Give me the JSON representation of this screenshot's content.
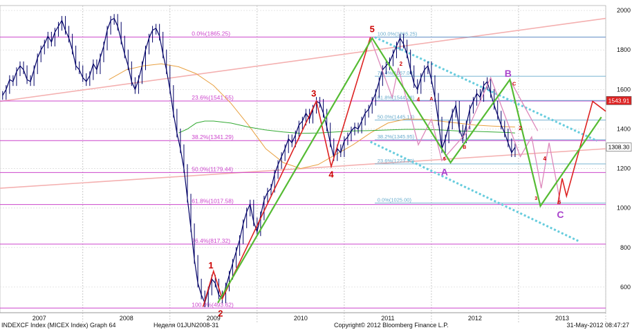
{
  "footer": {
    "ticker": "INDEXCF Index (MICEX Index) Graph 64",
    "week": "Неделя 01JUN2008-31",
    "copyright": "Copyright© 2012 Bloomberg Finance L.P.",
    "timestamp": "31-May-2012 08:47:27"
  },
  "chart_data": {
    "type": "line",
    "title": "",
    "xlabel": "",
    "ylabel": "",
    "ylim": [
      470,
      2025
    ],
    "xlim": [
      2006.55,
      2013.5
    ],
    "y_ticks": [
      600,
      800,
      1000,
      1200,
      1400,
      1600,
      1800,
      2000
    ],
    "x_ticks": [
      {
        "label": "2007",
        "at": 2007.0
      },
      {
        "label": "2008",
        "at": 2008.0
      },
      {
        "label": "2009",
        "at": 2009.0
      },
      {
        "label": "2010",
        "at": 2010.0
      },
      {
        "label": "2011",
        "at": 2011.0
      },
      {
        "label": "2012",
        "at": 2012.0
      },
      {
        "label": "2013",
        "at": 2013.0
      }
    ],
    "year_boundaries": [
      2007.5,
      2008.5,
      2009.5,
      2010.5,
      2011.5,
      2012.5,
      2013.5
    ],
    "grid": true,
    "colors": {
      "price": "#000066",
      "ma_short": "#33aa33",
      "ma_long": "#e8a040",
      "fib_main": "#cc44cc",
      "fib_sub": "#66aacc",
      "elliott": "#55bb33",
      "impulse": "#dd2222",
      "channel": "#66ccdd",
      "trend": "#f4b0b0",
      "projection": "#dd88bb",
      "label_red": "#cc0000",
      "label_purple": "#aa44cc"
    },
    "price_series": {
      "name": "MICEX Index",
      "points": [
        [
          2006.58,
          1570
        ],
        [
          2006.62,
          1600
        ],
        [
          2006.66,
          1650
        ],
        [
          2006.7,
          1640
        ],
        [
          2006.74,
          1690
        ],
        [
          2006.78,
          1720
        ],
        [
          2006.82,
          1700
        ],
        [
          2006.86,
          1650
        ],
        [
          2006.9,
          1640
        ],
        [
          2006.94,
          1700
        ],
        [
          2006.98,
          1760
        ],
        [
          2007.02,
          1800
        ],
        [
          2007.06,
          1830
        ],
        [
          2007.1,
          1870
        ],
        [
          2007.14,
          1840
        ],
        [
          2007.18,
          1890
        ],
        [
          2007.22,
          1920
        ],
        [
          2007.26,
          1950
        ],
        [
          2007.3,
          1900
        ],
        [
          2007.34,
          1860
        ],
        [
          2007.38,
          1800
        ],
        [
          2007.42,
          1720
        ],
        [
          2007.46,
          1700
        ],
        [
          2007.5,
          1660
        ],
        [
          2007.54,
          1640
        ],
        [
          2007.58,
          1670
        ],
        [
          2007.62,
          1730
        ],
        [
          2007.66,
          1700
        ],
        [
          2007.7,
          1760
        ],
        [
          2007.74,
          1820
        ],
        [
          2007.78,
          1900
        ],
        [
          2007.82,
          1950
        ],
        [
          2007.86,
          1960
        ],
        [
          2007.9,
          1920
        ],
        [
          2007.94,
          1850
        ],
        [
          2007.98,
          1780
        ],
        [
          2008.02,
          1720
        ],
        [
          2008.06,
          1640
        ],
        [
          2008.1,
          1600
        ],
        [
          2008.14,
          1650
        ],
        [
          2008.18,
          1720
        ],
        [
          2008.22,
          1800
        ],
        [
          2008.26,
          1860
        ],
        [
          2008.3,
          1900
        ],
        [
          2008.34,
          1910
        ],
        [
          2008.38,
          1870
        ],
        [
          2008.42,
          1780
        ],
        [
          2008.46,
          1700
        ],
        [
          2008.5,
          1600
        ],
        [
          2008.54,
          1480
        ],
        [
          2008.58,
          1380
        ],
        [
          2008.62,
          1300
        ],
        [
          2008.66,
          1200
        ],
        [
          2008.7,
          1050
        ],
        [
          2008.74,
          900
        ],
        [
          2008.78,
          740
        ],
        [
          2008.82,
          620
        ],
        [
          2008.86,
          560
        ],
        [
          2008.9,
          520
        ],
        [
          2008.94,
          580
        ],
        [
          2008.98,
          640
        ],
        [
          2009.02,
          620
        ],
        [
          2009.06,
          560
        ],
        [
          2009.1,
          540
        ],
        [
          2009.14,
          600
        ],
        [
          2009.18,
          660
        ],
        [
          2009.22,
          720
        ],
        [
          2009.26,
          780
        ],
        [
          2009.3,
          840
        ],
        [
          2009.34,
          920
        ],
        [
          2009.38,
          980
        ],
        [
          2009.42,
          1020
        ],
        [
          2009.46,
          930
        ],
        [
          2009.5,
          880
        ],
        [
          2009.54,
          960
        ],
        [
          2009.58,
          1040
        ],
        [
          2009.62,
          1080
        ],
        [
          2009.66,
          1100
        ],
        [
          2009.7,
          1170
        ],
        [
          2009.74,
          1220
        ],
        [
          2009.78,
          1260
        ],
        [
          2009.82,
          1300
        ],
        [
          2009.86,
          1350
        ],
        [
          2009.9,
          1330
        ],
        [
          2009.94,
          1370
        ],
        [
          2009.98,
          1420
        ],
        [
          2010.02,
          1440
        ],
        [
          2010.06,
          1480
        ],
        [
          2010.1,
          1450
        ],
        [
          2010.14,
          1500
        ],
        [
          2010.18,
          1540
        ],
        [
          2010.22,
          1530
        ],
        [
          2010.26,
          1480
        ],
        [
          2010.3,
          1410
        ],
        [
          2010.34,
          1330
        ],
        [
          2010.38,
          1260
        ],
        [
          2010.42,
          1300
        ],
        [
          2010.46,
          1280
        ],
        [
          2010.5,
          1340
        ],
        [
          2010.54,
          1360
        ],
        [
          2010.58,
          1390
        ],
        [
          2010.62,
          1410
        ],
        [
          2010.66,
          1400
        ],
        [
          2010.7,
          1440
        ],
        [
          2010.74,
          1480
        ],
        [
          2010.78,
          1500
        ],
        [
          2010.82,
          1540
        ],
        [
          2010.86,
          1580
        ],
        [
          2010.9,
          1640
        ],
        [
          2010.94,
          1700
        ],
        [
          2010.98,
          1720
        ],
        [
          2011.02,
          1740
        ],
        [
          2011.06,
          1780
        ],
        [
          2011.1,
          1820
        ],
        [
          2011.14,
          1860
        ],
        [
          2011.18,
          1830
        ],
        [
          2011.22,
          1780
        ],
        [
          2011.26,
          1700
        ],
        [
          2011.3,
          1630
        ],
        [
          2011.34,
          1600
        ],
        [
          2011.38,
          1660
        ],
        [
          2011.42,
          1700
        ],
        [
          2011.46,
          1720
        ],
        [
          2011.5,
          1650
        ],
        [
          2011.54,
          1560
        ],
        [
          2011.58,
          1440
        ],
        [
          2011.62,
          1300
        ],
        [
          2011.66,
          1350
        ],
        [
          2011.7,
          1420
        ],
        [
          2011.74,
          1480
        ],
        [
          2011.78,
          1520
        ],
        [
          2011.82,
          1400
        ],
        [
          2011.86,
          1350
        ],
        [
          2011.9,
          1420
        ],
        [
          2011.94,
          1500
        ],
        [
          2011.98,
          1540
        ],
        [
          2012.02,
          1580
        ],
        [
          2012.06,
          1560
        ],
        [
          2012.1,
          1620
        ],
        [
          2012.14,
          1640
        ],
        [
          2012.18,
          1580
        ],
        [
          2012.22,
          1520
        ],
        [
          2012.26,
          1470
        ],
        [
          2012.3,
          1420
        ],
        [
          2012.34,
          1380
        ],
        [
          2012.38,
          1330
        ],
        [
          2012.42,
          1280
        ],
        [
          2012.46,
          1308
        ]
      ]
    },
    "ma_short": {
      "name": "",
      "points": [
        [
          2008.6,
          1380
        ],
        [
          2008.7,
          1400
        ],
        [
          2008.8,
          1430
        ],
        [
          2008.9,
          1440
        ],
        [
          2009.0,
          1440
        ],
        [
          2009.2,
          1430
        ],
        [
          2009.4,
          1410
        ],
        [
          2009.6,
          1395
        ],
        [
          2009.8,
          1385
        ],
        [
          2010.0,
          1378
        ],
        [
          2010.2,
          1380
        ],
        [
          2010.4,
          1385
        ],
        [
          2010.6,
          1390
        ],
        [
          2010.8,
          1392
        ],
        [
          2011.0,
          1395
        ],
        [
          2011.2,
          1398
        ],
        [
          2011.4,
          1398
        ],
        [
          2011.6,
          1395
        ],
        [
          2011.8,
          1390
        ],
        [
          2012.0,
          1388
        ],
        [
          2012.2,
          1385
        ],
        [
          2012.4,
          1382
        ],
        [
          2012.46,
          1380
        ]
      ]
    },
    "ma_long": {
      "name": "",
      "points": [
        [
          2007.8,
          1650
        ],
        [
          2008.0,
          1700
        ],
        [
          2008.2,
          1720
        ],
        [
          2008.4,
          1730
        ],
        [
          2008.6,
          1715
        ],
        [
          2008.8,
          1680
        ],
        [
          2009.0,
          1620
        ],
        [
          2009.2,
          1530
        ],
        [
          2009.4,
          1420
        ],
        [
          2009.6,
          1300
        ],
        [
          2009.8,
          1230
        ],
        [
          2010.0,
          1200
        ],
        [
          2010.2,
          1220
        ],
        [
          2010.4,
          1270
        ],
        [
          2010.6,
          1320
        ],
        [
          2010.8,
          1380
        ],
        [
          2011.0,
          1430
        ],
        [
          2011.2,
          1450
        ],
        [
          2011.4,
          1450
        ],
        [
          2011.6,
          1440
        ],
        [
          2011.8,
          1430
        ],
        [
          2012.0,
          1420
        ],
        [
          2012.2,
          1415
        ],
        [
          2012.46,
          1410
        ]
      ]
    },
    "fib_main": [
      {
        "label": "0.0%(1865.25)",
        "value": 1865.25
      },
      {
        "label": "23.6%(1541.55)",
        "value": 1541.55
      },
      {
        "label": "38.2%(1341.29)",
        "value": 1341.29
      },
      {
        "label": "50.0%(1179.44)",
        "value": 1179.44
      },
      {
        "label": "61.8%(1017.58)",
        "value": 1017.58
      },
      {
        "label": "76.4%(817.32)",
        "value": 817.32
      },
      {
        "label": "100.0%(493.62)",
        "value": 493.62
      }
    ],
    "fib_sub": [
      {
        "label": "100.0%(1865.25)",
        "value": 1865.25
      },
      {
        "label": "76.4%(1667.00)",
        "value": 1667.0
      },
      {
        "label": "61.8%(1544.28)",
        "value": 1544.28
      },
      {
        "label": "50.0%(1445.13)",
        "value": 1445.13
      },
      {
        "label": "38.2%(1345.95)",
        "value": 1345.95
      },
      {
        "label": "23.6%(1223.30)",
        "value": 1223.3
      },
      {
        "label": "0.0%(1025.00)",
        "value": 1025.0
      }
    ],
    "elliott_lines": [
      [
        [
          2009.05,
          520
        ],
        [
          2010.82,
          1860
        ],
        [
          2011.72,
          1230
        ],
        [
          2012.4,
          1650
        ],
        [
          2012.75,
          1010
        ],
        [
          2013.45,
          1460
        ]
      ]
    ],
    "impulse_lines": [
      [
        [
          2008.88,
          500
        ],
        [
          2009.0,
          680
        ],
        [
          2009.1,
          540
        ],
        [
          2010.18,
          1541
        ],
        [
          2010.35,
          1210
        ],
        [
          2010.8,
          1865
        ]
      ],
      [
        [
          2012.95,
          1020
        ],
        [
          2013.0,
          1150
        ],
        [
          2013.05,
          1060
        ],
        [
          2013.35,
          1540
        ],
        [
          2013.5,
          1490
        ]
      ]
    ],
    "projection_lines": [
      [
        [
          2010.8,
          1860
        ],
        [
          2011.05,
          1560
        ],
        [
          2011.12,
          1710
        ],
        [
          2011.35,
          1320
        ],
        [
          2011.5,
          1450
        ],
        [
          2011.62,
          1240
        ],
        [
          2011.9,
          1380
        ],
        [
          2012.18,
          1660
        ],
        [
          2012.52,
          1260
        ],
        [
          2012.65,
          1360
        ],
        [
          2012.76,
          1100
        ],
        [
          2012.85,
          1330
        ],
        [
          2012.98,
          1025
        ]
      ],
      [
        [
          2012.4,
          1650
        ],
        [
          2012.72,
          1390
        ]
      ]
    ],
    "channel_lines": [
      [
        [
          2010.85,
          1865
        ],
        [
          2013.4,
          1340
        ]
      ],
      [
        [
          2010.8,
          1335
        ],
        [
          2013.2,
          830
        ]
      ]
    ],
    "trend_lines": [
      [
        [
          2006.55,
          1540
        ],
        [
          2013.5,
          1960
        ]
      ],
      [
        [
          2006.55,
          1100
        ],
        [
          2013.5,
          1300
        ]
      ]
    ],
    "price_flags": [
      {
        "label": "1543.91",
        "value": 1543.91,
        "color": "#dd2222",
        "text_color": "#ffffff"
      },
      {
        "label": "1308.30",
        "value": 1308.3,
        "color": "#ffffff",
        "text_color": "#000000"
      }
    ],
    "wave_labels": [
      {
        "label": "5",
        "x": 2010.82,
        "y": 1890,
        "color": "#cc0000",
        "size": 13
      },
      {
        "label": "3",
        "x": 2010.15,
        "y": 1565,
        "color": "#cc0000",
        "size": 13
      },
      {
        "label": "4",
        "x": 2010.35,
        "y": 1155,
        "color": "#cc0000",
        "size": 13
      },
      {
        "label": "1",
        "x": 2008.97,
        "y": 695,
        "color": "#cc0000",
        "size": 13
      },
      {
        "label": "2",
        "x": 2009.08,
        "y": 450,
        "color": "#cc0000",
        "size": 13
      },
      {
        "label": "A",
        "x": 2011.65,
        "y": 1165,
        "color": "#aa44cc",
        "size": 14
      },
      {
        "label": "B",
        "x": 2012.38,
        "y": 1665,
        "color": "#aa44cc",
        "size": 14
      },
      {
        "label": "C",
        "x": 2012.98,
        "y": 950,
        "color": "#aa44cc",
        "size": 14
      },
      {
        "label": "2",
        "x": 2011.15,
        "y": 1720,
        "color": "#cc0000",
        "size": 8
      },
      {
        "label": "4",
        "x": 2011.35,
        "y": 1540,
        "color": "#cc0000",
        "size": 8
      },
      {
        "label": "A",
        "x": 2011.5,
        "y": 1545,
        "color": "#cc0000",
        "size": 7
      },
      {
        "label": "5",
        "x": 2011.65,
        "y": 1240,
        "color": "#cc0000",
        "size": 7
      },
      {
        "label": "B",
        "x": 2011.88,
        "y": 1300,
        "color": "#cc0000",
        "size": 7
      },
      {
        "label": "C",
        "x": 2012.45,
        "y": 1620,
        "color": "#cc0000",
        "size": 7
      },
      {
        "label": "2",
        "x": 2012.52,
        "y": 1395,
        "color": "#cc0000",
        "size": 8
      },
      {
        "label": "4",
        "x": 2012.8,
        "y": 1240,
        "color": "#cc0000",
        "size": 8
      },
      {
        "label": "3",
        "x": 2012.7,
        "y": 1040,
        "color": "#cc0000",
        "size": 7
      },
      {
        "label": "5",
        "x": 2012.97,
        "y": 1020,
        "color": "#cc0000",
        "size": 7
      }
    ]
  }
}
